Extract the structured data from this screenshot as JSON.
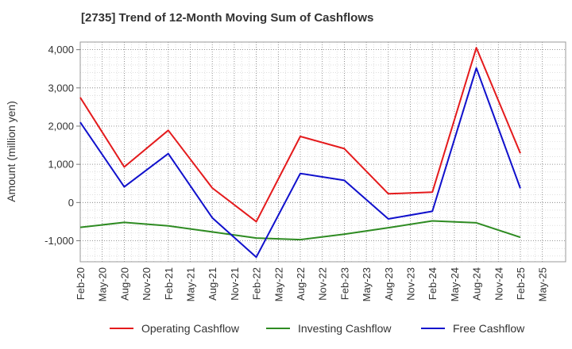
{
  "chart_data": {
    "type": "line",
    "title": "[2735]  Trend of 12-Month Moving Sum of Cashflows",
    "xlabel": "",
    "ylabel": "Amount (million yen)",
    "x_ticks": [
      "Feb-20",
      "May-20",
      "Aug-20",
      "Nov-20",
      "Feb-21",
      "May-21",
      "Aug-21",
      "Nov-21",
      "Feb-22",
      "May-22",
      "Aug-22",
      "Nov-22",
      "Feb-23",
      "May-23",
      "Aug-23",
      "Nov-23",
      "Feb-24",
      "May-24",
      "Aug-24",
      "Nov-24",
      "Feb-25",
      "May-25"
    ],
    "y_ticks": [
      -1000,
      0,
      1000,
      2000,
      3000,
      4000
    ],
    "y_tick_labels": [
      "-1,000",
      "0",
      "1,000",
      "2,000",
      "3,000",
      "4,000"
    ],
    "ylim": [
      -1550,
      4200
    ],
    "grid": true,
    "legend_position": "bottom",
    "x": [
      "Feb-20",
      "Aug-20",
      "Feb-21",
      "Aug-21",
      "Feb-22",
      "Aug-22",
      "Feb-23",
      "Aug-23",
      "Feb-24",
      "Aug-24",
      "Feb-25"
    ],
    "series": [
      {
        "name": "Operating Cashflow",
        "color": "#e41a1c",
        "values": [
          2750,
          930,
          1890,
          380,
          -500,
          1730,
          1410,
          230,
          270,
          4050,
          1290
        ]
      },
      {
        "name": "Investing Cashflow",
        "color": "#2e8b22",
        "values": [
          -650,
          -520,
          -610,
          -770,
          -930,
          -970,
          -830,
          -660,
          -480,
          -530,
          -910
        ]
      },
      {
        "name": "Free Cashflow",
        "color": "#1010cc",
        "values": [
          2100,
          410,
          1280,
          -400,
          -1430,
          760,
          580,
          -430,
          -230,
          3520,
          370
        ]
      }
    ]
  }
}
